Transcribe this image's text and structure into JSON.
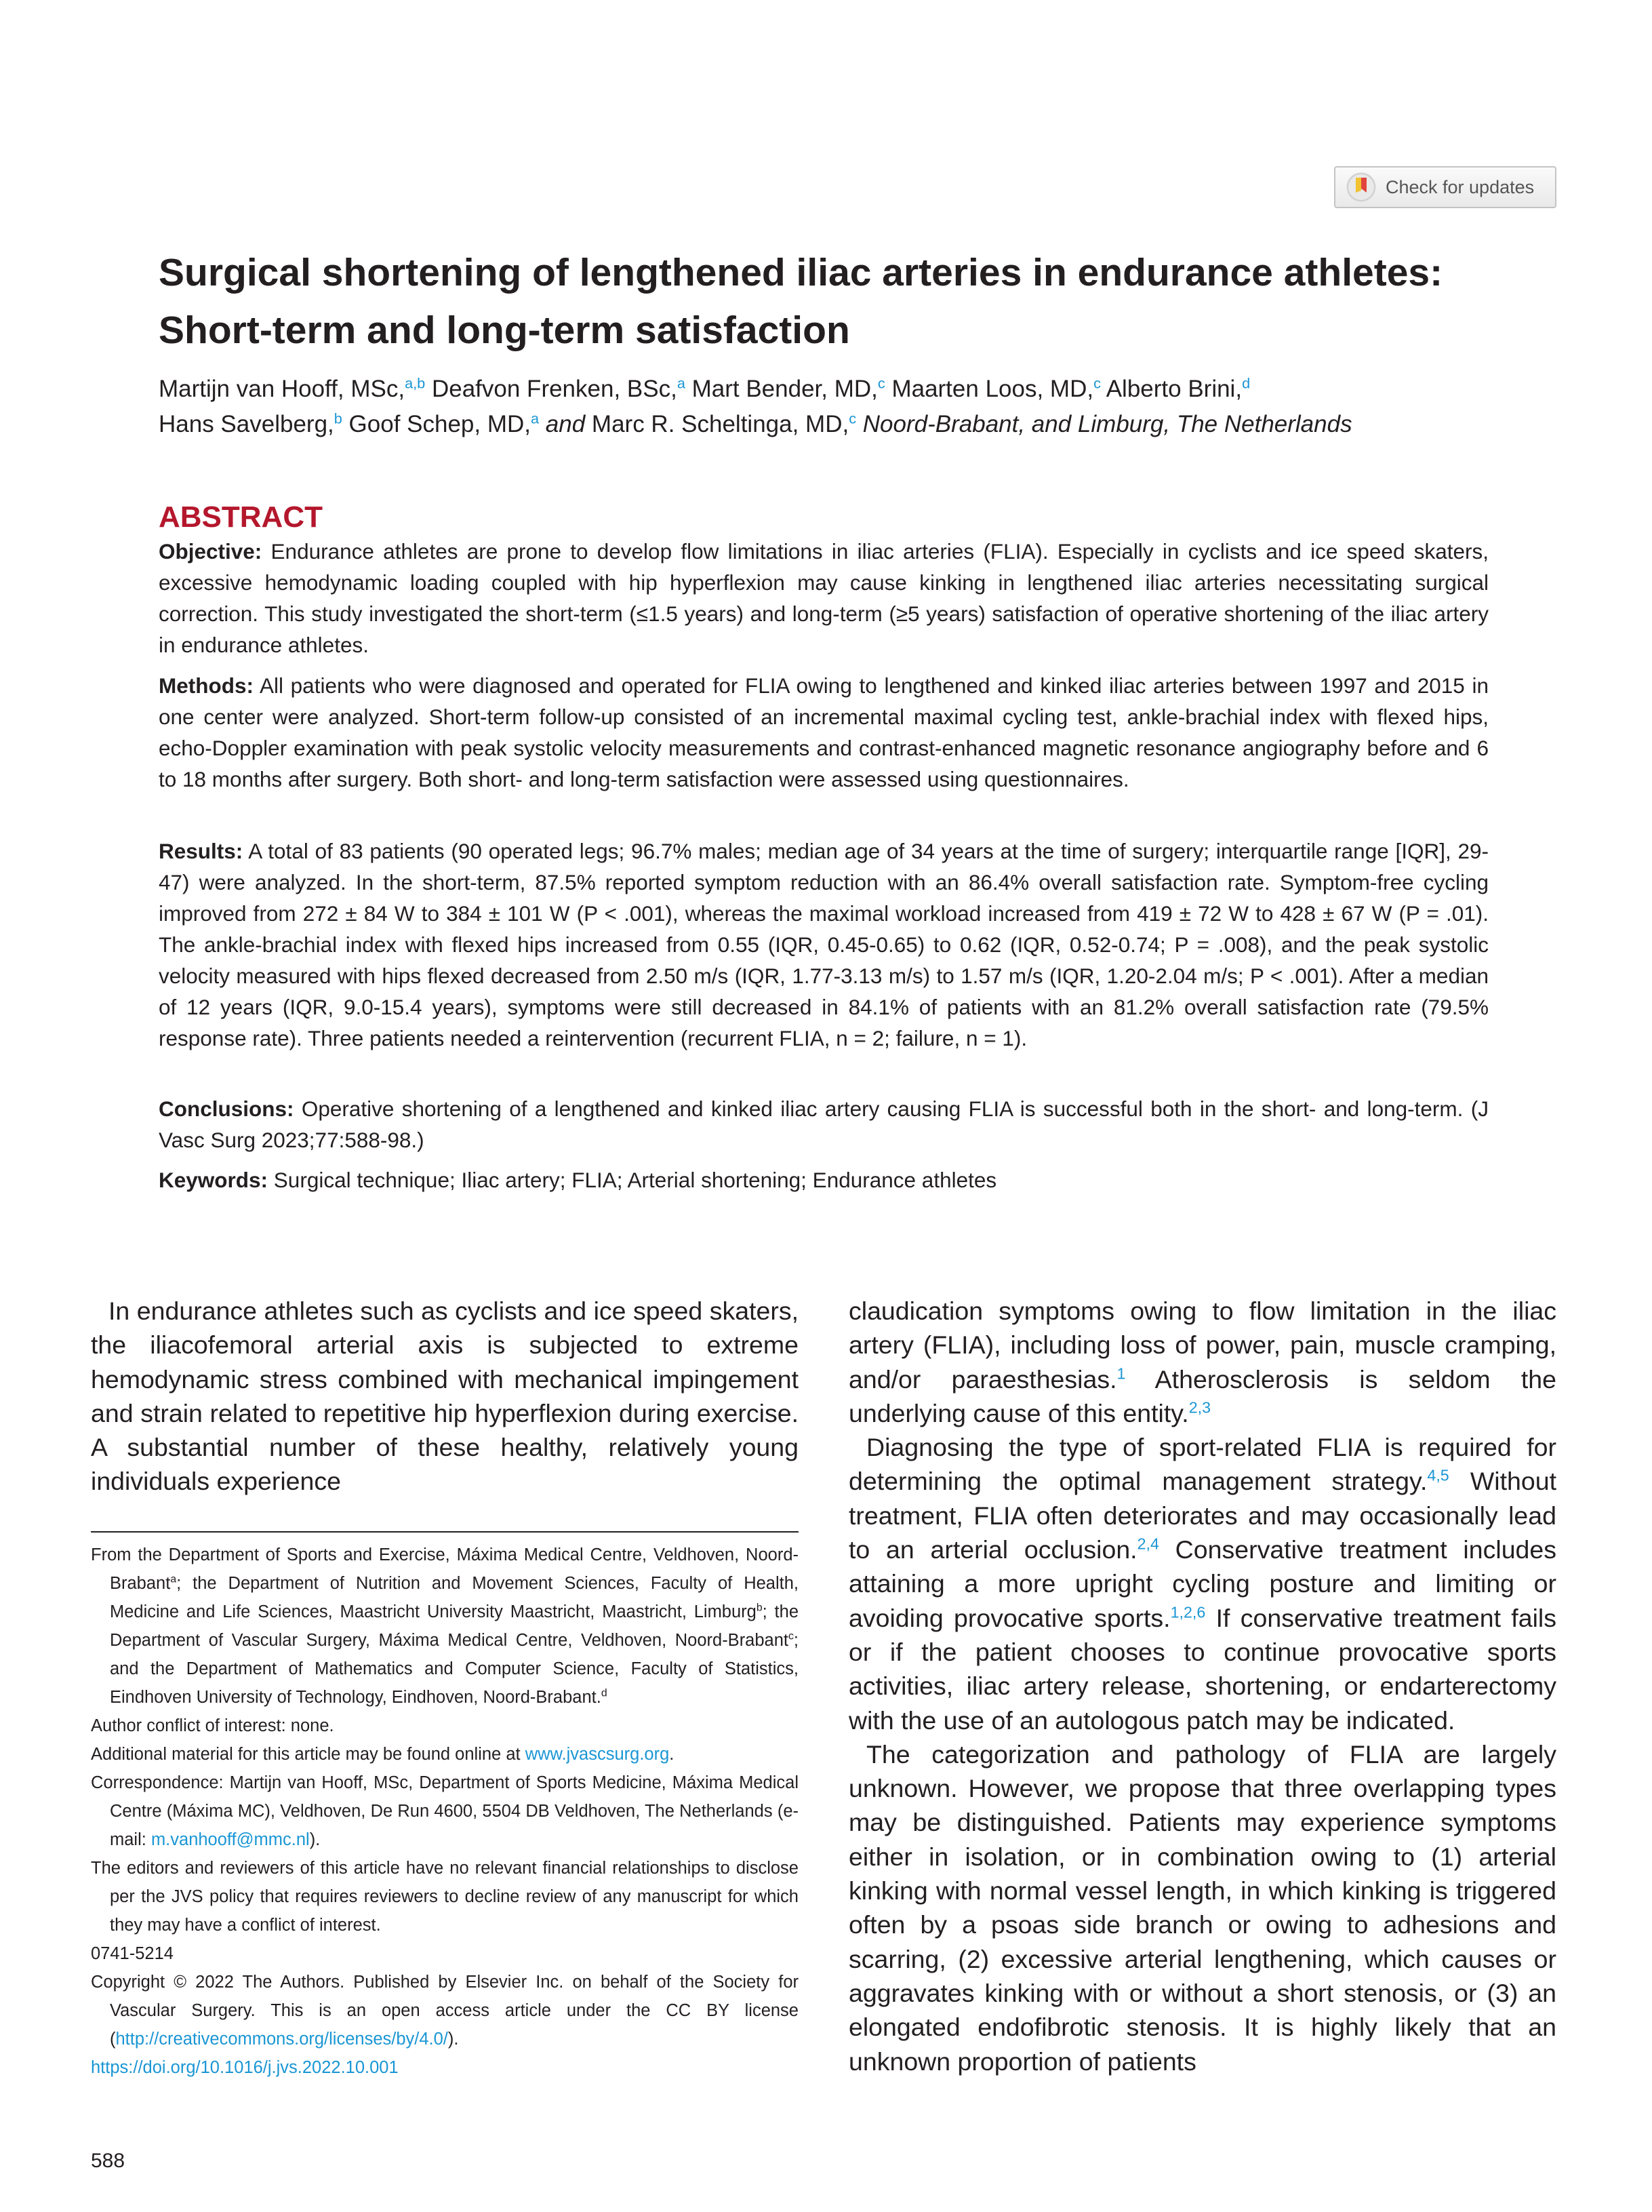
{
  "badge": {
    "label": "Check for updates"
  },
  "title": "Surgical shortening of lengthened iliac arteries in endurance athletes: Short-term and long-term satisfaction",
  "authors": {
    "line1": [
      {
        "name": "Martijn van Hooff, MSc,",
        "aff": "a,b"
      },
      {
        "name": " Deafvon Frenken, BSc,",
        "aff": "a"
      },
      {
        "name": " Mart Bender, MD,",
        "aff": "c"
      },
      {
        "name": " Maarten Loos, MD,",
        "aff": "c"
      },
      {
        "name": " Alberto Brini,",
        "aff": "d"
      }
    ],
    "line2": [
      {
        "name": "Hans Savelberg,",
        "aff": "b"
      },
      {
        "name": " Goof Schep, MD,",
        "aff": "a"
      }
    ],
    "and": "and",
    "last": {
      "name": " Marc R. Scheltinga, MD,",
      "aff": "c"
    },
    "location": "Noord-Brabant, and Limburg, The Netherlands"
  },
  "abstract": {
    "heading": "ABSTRACT",
    "objective_label": "Objective:",
    "objective": " Endurance athletes are prone to develop flow limitations in iliac arteries (FLIA). Especially in cyclists and ice speed skaters, excessive hemodynamic loading coupled with hip hyperflexion may cause kinking in lengthened iliac arteries necessitating surgical correction. This study investigated the short-term (≤1.5 years) and long-term (≥5 years) satisfaction of operative shortening of the iliac artery in endurance athletes.",
    "methods_label": "Methods:",
    "methods": " All patients who were diagnosed and operated for FLIA owing to lengthened and kinked iliac arteries between 1997 and 2015 in one center were analyzed. Short-term follow-up consisted of an incremental maximal cycling test, ankle-brachial index with flexed hips, echo-Doppler examination with peak systolic velocity measurements and contrast-enhanced magnetic resonance angiography before and 6 to 18 months after surgery. Both short- and long-term satisfaction were assessed using questionnaires.",
    "results_label": "Results:",
    "results": " A total of 83 patients (90 operated legs; 96.7% males; median age of 34 years at the time of surgery; interquartile range [IQR], 29-47) were analyzed. In the short-term, 87.5% reported symptom reduction with an 86.4% overall satisfaction rate. Symptom-free cycling improved from 272 ± 84 W to 384 ± 101 W (P < .001), whereas the maximal workload increased from 419 ± 72 W to 428 ± 67 W (P = .01). The ankle-brachial index with flexed hips increased from 0.55 (IQR, 0.45-0.65) to 0.62 (IQR, 0.52-0.74; P = .008), and the peak systolic velocity measured with hips flexed decreased from 2.50 m/s (IQR, 1.77-3.13 m/s) to 1.57 m/s (IQR, 1.20-2.04 m/s; P < .001). After a median of 12 years (IQR, 9.0-15.4 years), symptoms were still decreased in 84.1% of patients with an 81.2% overall satisfaction rate (79.5% response rate). Three patients needed a reintervention (recurrent FLIA, n = 2; failure, n = 1).",
    "conclusions_label": "Conclusions:",
    "conclusions": " Operative shortening of a lengthened and kinked iliac artery causing FLIA is successful both in the short- and long-term. (J Vasc Surg 2023;77:588-98.)",
    "keywords_label": "Keywords:",
    "keywords": " Surgical technique; Iliac artery; FLIA; Arterial shortening; Endurance athletes"
  },
  "left_column": {
    "para1": "In endurance athletes such as cyclists and ice speed skaters, the iliacofemoral arterial axis is subjected to extreme hemodynamic stress combined with mechanical impingement and strain related to repetitive hip hyperflexion during exercise. A substantial number of these healthy, relatively young individuals experience"
  },
  "footnotes": {
    "from_a": "From the Department of Sports and Exercise, Máxima Medical Centre, Veldhoven, Noord-Brabant",
    "from_b": "; the Department of Nutrition and Movement Sciences, Faculty of Health, Medicine and Life Sciences, Maastricht University Maastricht, Maastricht, Limburg",
    "from_c": "; the Department of Vascular Surgery, Máxima Medical Centre, Veldhoven, Noord-Brabant",
    "from_d": "; and the Department of Mathematics and Computer Science, Faculty of Statistics, Eindhoven University of Technology, Eindhoven, Noord-Brabant.",
    "sup_a": "a",
    "sup_b": "b",
    "sup_c": "c",
    "sup_d": "d",
    "conflict": "Author conflict of interest: none.",
    "additional_prefix": "Additional material for this article may be found online at ",
    "additional_link": "www.jvascsurg.org",
    "additional_suffix": ".",
    "correspondence_prefix": "Correspondence: Martijn van Hooff, MSc, Department of Sports Medicine, Máxima Medical Centre (Máxima MC), Veldhoven, De Run 4600, 5504 DB Veldhoven, The Netherlands (e-mail: ",
    "correspondence_email": "m.vanhooff@mmc.nl",
    "correspondence_suffix": ").",
    "editors": "The editors and reviewers of this article have no relevant financial relationships to disclose per the JVS policy that requires reviewers to decline review of any manuscript for which they may have a conflict of interest.",
    "issn": "0741-5214",
    "copyright_prefix": "Copyright © 2022 The Authors. Published by Elsevier Inc. on behalf of the Society for Vascular Surgery. This is an open access article under the CC BY license (",
    "copyright_link": "http://creativecommons.org/licenses/by/4.0/",
    "copyright_suffix": ").",
    "doi": "https://doi.org/10.1016/j.jvs.2022.10.001"
  },
  "right_column": {
    "p1_a": "claudication symptoms owing to flow limitation in the iliac artery (FLIA), including loss of power, pain, muscle cramping, and/or paraesthesias.",
    "p1_ref1": "1",
    "p1_b": " Atherosclerosis is seldom the underlying cause of this entity.",
    "p1_ref2": "2,3",
    "p2_a": "Diagnosing the type of sport-related FLIA is required for determining the optimal management strategy.",
    "p2_ref1": "4,5",
    "p2_b": " Without treatment, FLIA often deteriorates and may occasionally lead to an arterial occlusion.",
    "p2_ref2": "2,4",
    "p2_c": " Conservative treatment includes attaining a more upright cycling posture and limiting or avoiding provocative sports.",
    "p2_ref3": "1,2,6",
    "p2_d": " If conservative treatment fails or if the patient chooses to continue provocative sports activities, iliac artery release, shortening, or endarterectomy with the use of an autologous patch may be indicated.",
    "p3": "The categorization and pathology of FLIA are largely unknown. However, we propose that three overlapping types may be distinguished. Patients may experience symptoms either in isolation, or in combination owing to (1) arterial kinking with normal vessel length, in which kinking is triggered often by a psoas side branch or owing to adhesions and scarring, (2) excessive arterial lengthening, which causes or aggravates kinking with or without a short stenosis, or (3) an elongated endofibrotic stenosis. It is highly likely that an unknown proportion of patients"
  },
  "page_number": "588"
}
